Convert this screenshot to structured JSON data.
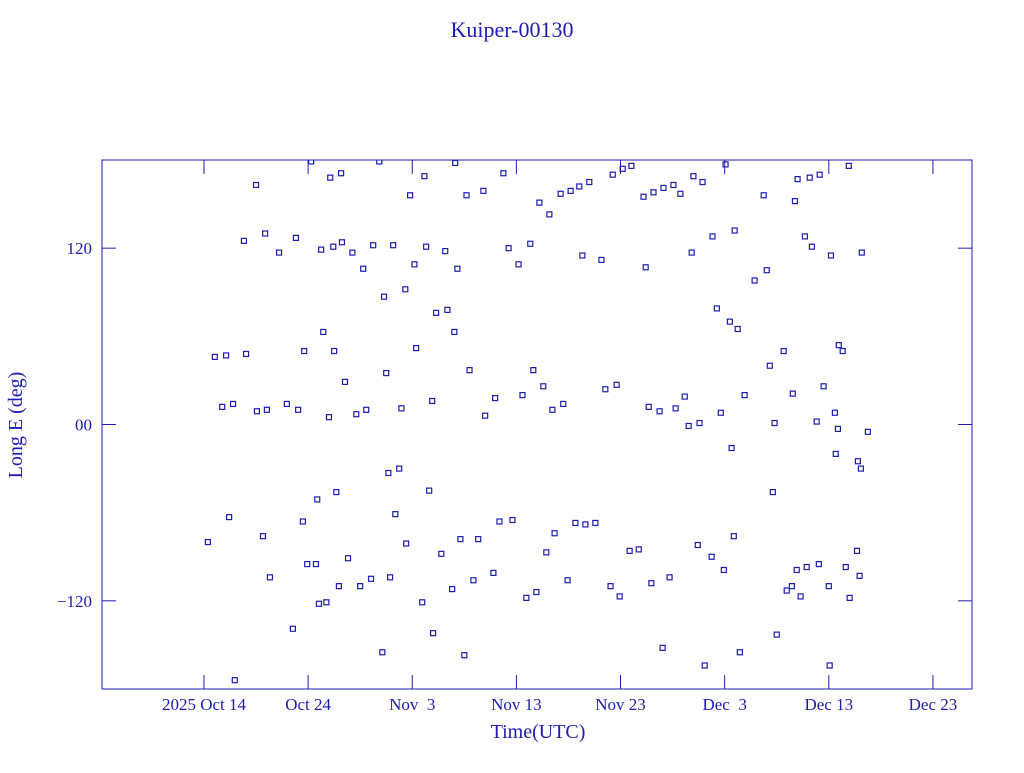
{
  "chart_data": {
    "type": "line",
    "title": "Kuiper-00130",
    "x_label": "Time(UTC)",
    "y_label": "Long E (deg)",
    "xlim": [
      "2025-10-04T05:00",
      "2025-12-26T18:00"
    ],
    "xticks": [
      {
        "value": "2025-10-14T00:00",
        "label": "2025 Oct 14"
      },
      {
        "value": "2025-10-24T00:00",
        "label": "Oct 24"
      },
      {
        "value": "2025-11-03T00:00",
        "label": "Nov  3"
      },
      {
        "value": "2025-11-13T00:00",
        "label": "Nov 13"
      },
      {
        "value": "2025-11-23T00:00",
        "label": "Nov 23"
      },
      {
        "value": "2025-12-03T00:00",
        "label": "Dec  3"
      },
      {
        "value": "2025-12-13T00:00",
        "label": "Dec 13"
      },
      {
        "value": "2025-12-23T00:00",
        "label": "Dec 23"
      }
    ],
    "ylim": [
      -180,
      180
    ],
    "yticks": [
      {
        "value": -120,
        "label": "−120"
      },
      {
        "value": 0,
        "label": "00"
      },
      120
    ],
    "x": [
      "2025-10-14T09:00",
      "2025-10-15T01:00",
      "2025-10-15T18:00",
      "2025-10-16T03:00",
      "2025-10-16T10:00",
      "2025-10-16T19:00",
      "2025-10-16T23:00",
      "2025-10-17T20:00",
      "2025-10-18T01:00",
      "2025-10-19T00:00",
      "2025-10-19T02:00",
      "2025-10-19T16:00",
      "2025-10-19T21:00",
      "2025-10-20T01:00",
      "2025-10-20T08:00",
      "2025-10-21T05:00",
      "2025-10-21T23:00",
      "2025-10-22T13:00",
      "2025-10-22T20:00",
      "2025-10-23T01:00",
      "2025-10-23T12:00",
      "2025-10-23T15:00",
      "2025-10-23T22:00",
      "2025-10-24T07:00",
      "2025-10-24T18:00",
      "2025-10-24T21:00",
      "2025-10-25T01:00",
      "2025-10-25T06:00",
      "2025-10-25T11:00",
      "2025-10-25T18:00",
      "2025-10-26T00:00",
      "2025-10-26T03:00",
      "2025-10-26T10:00",
      "2025-10-26T12:00",
      "2025-10-26T17:00",
      "2025-10-26T23:00",
      "2025-10-27T04:00",
      "2025-10-27T06:00",
      "2025-10-27T13:00",
      "2025-10-27T20:00",
      "2025-10-28T06:00",
      "2025-10-28T15:00",
      "2025-10-29T00:00",
      "2025-10-29T07:00",
      "2025-10-29T14:00",
      "2025-10-30T01:00",
      "2025-10-30T06:00",
      "2025-10-30T20:00",
      "2025-10-31T03:00",
      "2025-10-31T07:00",
      "2025-10-31T12:00",
      "2025-10-31T17:00",
      "2025-10-31T21:00",
      "2025-11-01T04:00",
      "2025-11-01T09:00",
      "2025-11-01T18:00",
      "2025-11-01T23:00",
      "2025-11-02T08:00",
      "2025-11-02T10:00",
      "2025-11-02T19:00",
      "2025-11-03T05:00",
      "2025-11-03T09:00",
      "2025-11-03T23:00",
      "2025-11-04T04:00",
      "2025-11-04T08:00",
      "2025-11-04T15:00",
      "2025-11-04T22:00",
      "2025-11-05T00:00",
      "2025-11-05T07:00",
      "2025-11-05T19:00",
      "2025-11-06T04:00",
      "2025-11-06T09:00",
      "2025-11-06T20:00",
      "2025-11-07T01:00",
      "2025-11-07T03:00",
      "2025-11-07T08:00",
      "2025-11-07T15:00",
      "2025-11-08T00:00",
      "2025-11-08T05:00",
      "2025-11-08T12:00",
      "2025-11-08T21:00",
      "2025-11-09T08:00",
      "2025-11-09T20:00",
      "2025-11-10T00:00",
      "2025-11-10T19:00",
      "2025-11-10T23:00",
      "2025-11-11T09:00",
      "2025-11-11T18:00",
      "2025-11-12T06:00",
      "2025-11-12T15:00",
      "2025-11-13T05:00",
      "2025-11-13T14:00",
      "2025-11-13T23:00",
      "2025-11-14T08:00",
      "2025-11-14T15:00",
      "2025-11-14T22:00",
      "2025-11-15T05:00",
      "2025-11-15T14:00",
      "2025-11-15T21:00",
      "2025-11-16T04:00",
      "2025-11-16T11:00",
      "2025-11-16T16:00",
      "2025-11-17T06:00",
      "2025-11-17T12:00",
      "2025-11-17T22:00",
      "2025-11-18T05:00",
      "2025-11-18T16:00",
      "2025-11-19T01:00",
      "2025-11-19T08:00",
      "2025-11-19T15:00",
      "2025-11-20T00:00",
      "2025-11-20T14:00",
      "2025-11-21T04:00",
      "2025-11-21T13:00",
      "2025-11-22T01:00",
      "2025-11-22T06:00",
      "2025-11-22T15:00",
      "2025-11-22T22:00",
      "2025-11-23T05:00",
      "2025-11-23T21:00",
      "2025-11-24T01:00",
      "2025-11-24T18:00",
      "2025-11-25T05:00",
      "2025-11-25T10:00",
      "2025-11-25T17:00",
      "2025-11-25T23:00",
      "2025-11-26T04:00",
      "2025-11-26T18:00",
      "2025-11-27T01:00",
      "2025-11-27T03:00",
      "2025-11-27T17:00",
      "2025-11-28T02:00",
      "2025-11-28T07:00",
      "2025-11-28T18:00",
      "2025-11-29T04:00",
      "2025-11-29T13:00",
      "2025-11-29T20:00",
      "2025-11-30T00:00",
      "2025-11-30T10:00",
      "2025-11-30T14:00",
      "2025-11-30T21:00",
      "2025-12-01T02:00",
      "2025-12-01T18:00",
      "2025-12-01T20:00",
      "2025-12-02T06:00",
      "2025-12-02T15:00",
      "2025-12-02T22:00",
      "2025-12-03T02:00",
      "2025-12-03T12:00",
      "2025-12-03T16:00",
      "2025-12-03T21:00",
      "2025-12-03T23:00",
      "2025-12-04T06:00",
      "2025-12-04T11:00",
      "2025-12-04T22:00",
      "2025-12-05T21:00",
      "2025-12-06T18:00",
      "2025-12-07T01:00",
      "2025-12-07T08:00",
      "2025-12-07T15:00",
      "2025-12-07T19:00",
      "2025-12-08T00:00",
      "2025-12-08T16:00",
      "2025-12-08T23:00",
      "2025-12-09T11:00",
      "2025-12-09T13:00",
      "2025-12-09T18:00",
      "2025-12-09T22:00",
      "2025-12-10T00:00",
      "2025-12-10T07:00",
      "2025-12-10T17:00",
      "2025-12-10T21:00",
      "2025-12-11T04:00",
      "2025-12-11T09:00",
      "2025-12-11T20:00",
      "2025-12-12T01:00",
      "2025-12-12T03:00",
      "2025-12-12T12:00",
      "2025-12-13T00:00",
      "2025-12-13T02:00",
      "2025-12-13T05:00",
      "2025-12-13T14:00",
      "2025-12-13T16:00",
      "2025-12-13T21:00",
      "2025-12-13T23:00",
      "2025-12-14T08:00",
      "2025-12-14T15:00",
      "2025-12-14T22:00",
      "2025-12-15T00:00",
      "2025-12-15T17:00",
      "2025-12-15T19:00",
      "2025-12-15T23:00",
      "2025-12-16T02:00",
      "2025-12-16T04:00",
      "2025-12-16T18:00"
    ],
    "series": [
      {
        "color": "#1c1cb0",
        "values": [
          -80,
          46,
          12,
          47,
          -63,
          14,
          -174,
          125,
          48,
          163,
          9,
          -76,
          130,
          10,
          -104,
          117,
          14,
          -139,
          127,
          10,
          -66,
          50,
          -95,
          179,
          -95,
          -51,
          -122,
          119,
          63,
          -121,
          5,
          168,
          121,
          50,
          -46,
          -110,
          171,
          124,
          29,
          -91,
          117,
          7,
          -110,
          106,
          10,
          -105,
          122,
          179,
          -155,
          87,
          35,
          -33,
          -104,
          122,
          -61,
          -30,
          11,
          92,
          -81,
          156,
          109,
          52,
          -121,
          169,
          121,
          -45,
          16,
          -142,
          76,
          -88,
          118,
          78,
          -112,
          63,
          178,
          106,
          -78,
          -157,
          156,
          37,
          -106,
          -78,
          159,
          6,
          -101,
          18,
          -66,
          171,
          120,
          -65,
          109,
          20,
          -118,
          123,
          37,
          -114,
          151,
          26,
          -87,
          143,
          10,
          -74,
          157,
          14,
          -106,
          159,
          -67,
          162,
          115,
          -68,
          165,
          -67,
          112,
          24,
          -110,
          170,
          27,
          -117,
          174,
          -86,
          176,
          -85,
          155,
          107,
          12,
          -108,
          158,
          9,
          -152,
          161,
          -104,
          163,
          11,
          157,
          19,
          -1,
          117,
          169,
          -82,
          1,
          165,
          -164,
          -90,
          128,
          79,
          8,
          -99,
          177,
          70,
          -16,
          -76,
          132,
          65,
          -155,
          20,
          98,
          156,
          105,
          40,
          -46,
          1,
          -143,
          50,
          -113,
          -110,
          21,
          152,
          -99,
          167,
          -117,
          128,
          -97,
          168,
          121,
          2,
          -95,
          170,
          26,
          -110,
          -164,
          115,
          8,
          -20,
          -3,
          54,
          50,
          -97,
          176,
          -118,
          -86,
          -25,
          -103,
          -30,
          117,
          -5
        ]
      }
    ]
  }
}
